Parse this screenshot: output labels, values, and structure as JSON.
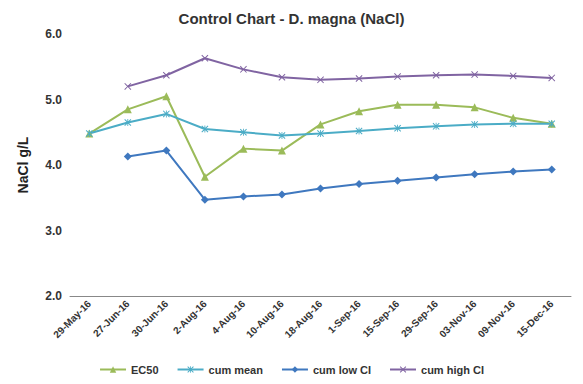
{
  "chart_data": {
    "type": "line",
    "title": "Control Chart - D. magna (NaCl)",
    "y_label": "NaCl g/L",
    "categories": [
      "29-May-16",
      "27-Jun-16",
      "30-Jun-16",
      "2-Aug-16",
      "4-Aug-16",
      "10-Aug-16",
      "18-Aug-16",
      "1-Sep-16",
      "15-Sep-16",
      "29-Sep-16",
      "03-Nov-16",
      "09-Nov-16",
      "15-Dec-16"
    ],
    "series": [
      {
        "name": "EC50",
        "color": "#9bbb59",
        "marker": "triangle",
        "values": [
          4.48,
          4.85,
          5.05,
          3.82,
          4.25,
          4.22,
          4.62,
          4.82,
          4.92,
          4.92,
          4.88,
          4.72,
          4.63
        ]
      },
      {
        "name": "cum mean",
        "color": "#4bacc6",
        "marker": "star",
        "values": [
          4.48,
          4.65,
          4.78,
          4.55,
          4.5,
          4.45,
          4.48,
          4.52,
          4.56,
          4.59,
          4.62,
          4.63,
          4.63
        ]
      },
      {
        "name": "cum low CI",
        "color": "#3f78bf",
        "marker": "diamond",
        "values": [
          null,
          4.13,
          4.22,
          3.47,
          3.52,
          3.55,
          3.64,
          3.71,
          3.76,
          3.81,
          3.86,
          3.9,
          3.93
        ]
      },
      {
        "name": "cum high CI",
        "color": "#8064a2",
        "marker": "x",
        "values": [
          null,
          5.2,
          5.37,
          5.63,
          5.46,
          5.34,
          5.3,
          5.32,
          5.35,
          5.37,
          5.38,
          5.36,
          5.33
        ]
      }
    ],
    "ylim": [
      2,
      6
    ],
    "yticks": [
      {
        "value": 2,
        "label": "2.0"
      },
      {
        "value": 3,
        "label": "3.0"
      },
      {
        "value": 4,
        "label": "4.0"
      },
      {
        "value": 5,
        "label": "5.0"
      },
      {
        "value": 6,
        "label": "6.0"
      }
    ],
    "grid": false,
    "legend": "bottom"
  }
}
